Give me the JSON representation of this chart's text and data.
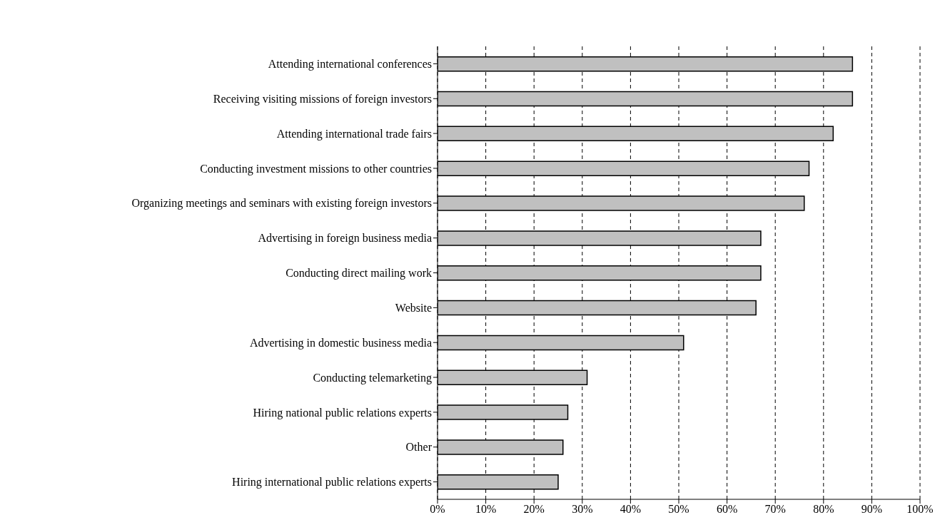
{
  "chart_data": {
    "type": "bar",
    "orientation": "horizontal",
    "categories": [
      "Attending international conferences",
      "Receiving visiting missions of foreign investors",
      "Attending international trade fairs",
      "Conducting investment missions to other countries",
      "Organizing meetings and seminars with existing foreign investors",
      "Advertising in foreign business media",
      "Conducting direct mailing work",
      "Website",
      "Advertising in domestic business media",
      "Conducting telemarketing",
      "Hiring national public relations experts",
      "Other",
      "Hiring international public relations experts"
    ],
    "values": [
      86,
      86,
      82,
      77,
      76,
      67,
      67,
      66,
      51,
      31,
      27,
      26,
      25
    ],
    "color": "#c0c0c0",
    "xlim": [
      0,
      100
    ],
    "xticks": [
      {
        "value": 0,
        "label": "0%"
      },
      {
        "value": 10,
        "label": "10%"
      },
      {
        "value": 20,
        "label": "20%"
      },
      {
        "value": 30,
        "label": "30%"
      },
      {
        "value": 40,
        "label": "40%"
      },
      {
        "value": 50,
        "label": "50%"
      },
      {
        "value": 60,
        "label": "60%"
      },
      {
        "value": 70,
        "label": "70%"
      },
      {
        "value": 80,
        "label": "80%"
      },
      {
        "value": 90,
        "label": "90%"
      },
      {
        "value": 100,
        "label": "100%"
      }
    ],
    "grid": "x"
  }
}
